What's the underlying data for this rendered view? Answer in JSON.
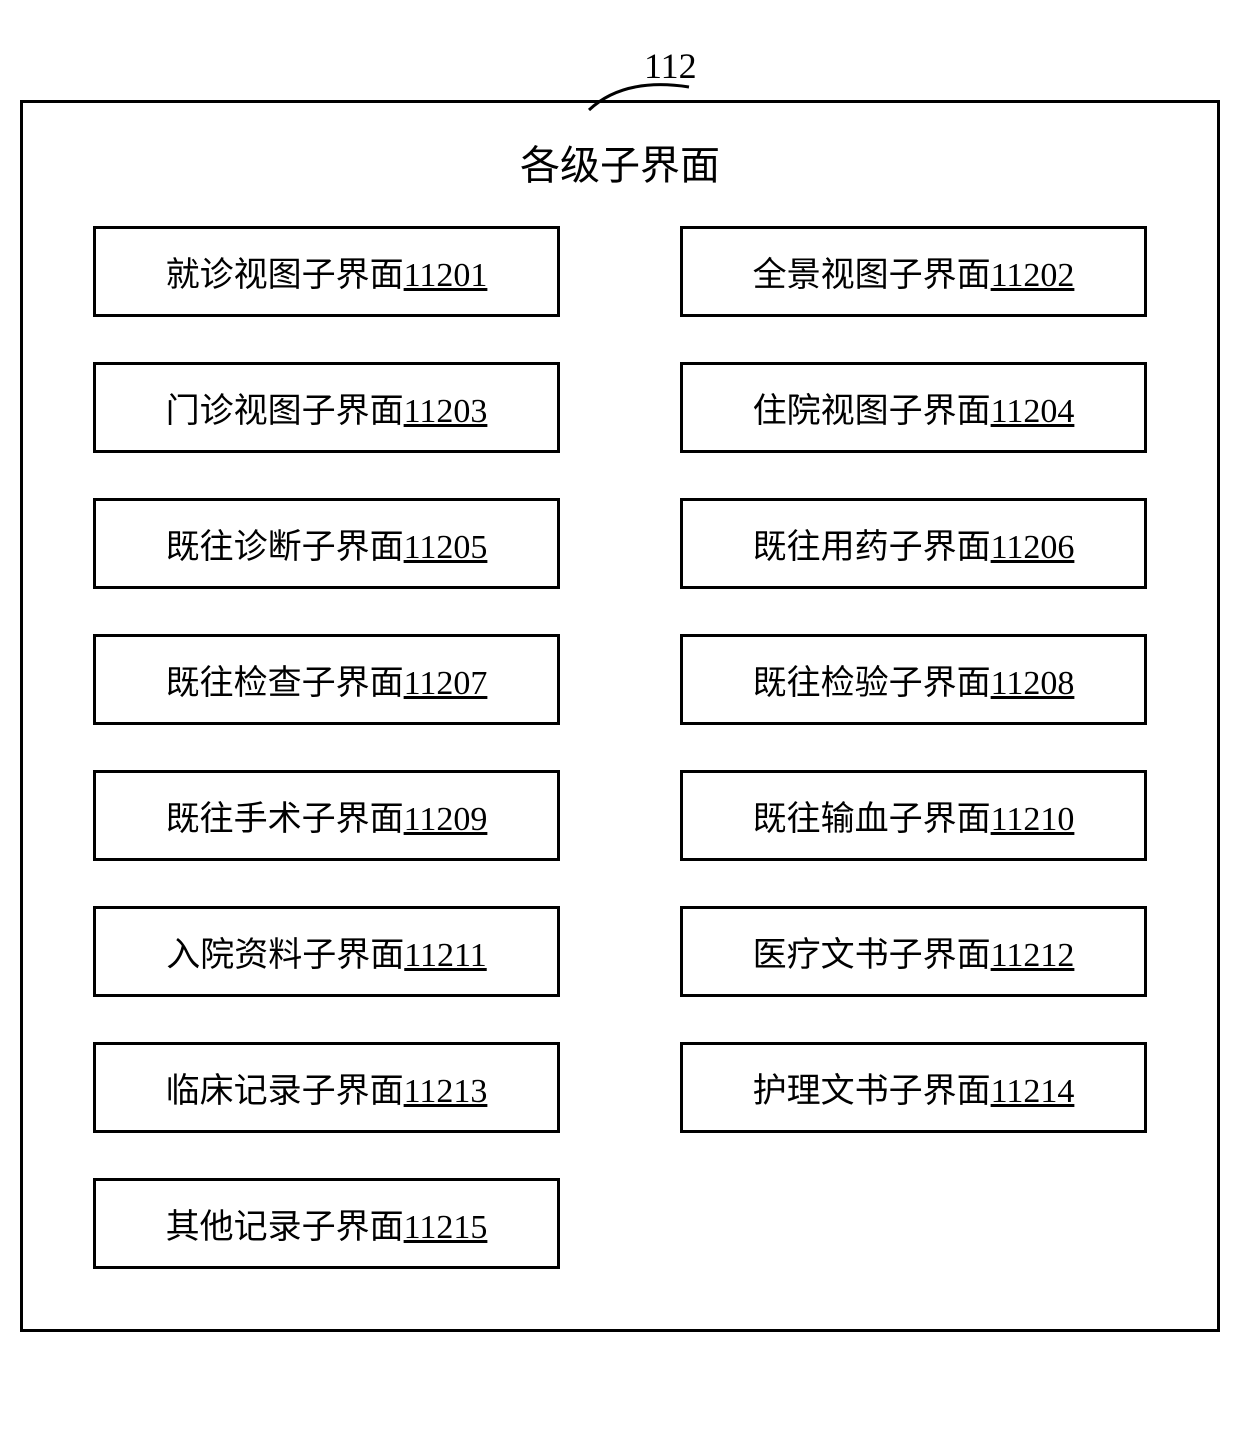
{
  "diagram": {
    "callout_number": "112",
    "title": "各级子界面",
    "border_color": "#000000",
    "background_color": "#ffffff",
    "text_color": "#000000",
    "title_fontsize": 40,
    "item_fontsize": 34,
    "callout_fontsize": 36,
    "columns": 2,
    "items": [
      {
        "label": "就诊视图子界面",
        "code": "11201"
      },
      {
        "label": "全景视图子界面",
        "code": "11202"
      },
      {
        "label": "门诊视图子界面",
        "code": "11203"
      },
      {
        "label": "住院视图子界面",
        "code": "11204"
      },
      {
        "label": "既往诊断子界面",
        "code": "11205"
      },
      {
        "label": "既往用药子界面",
        "code": "11206"
      },
      {
        "label": "既往检查子界面",
        "code": "11207"
      },
      {
        "label": "既往检验子界面",
        "code": "11208"
      },
      {
        "label": "既往手术子界面",
        "code": "11209"
      },
      {
        "label": "既往输血子界面",
        "code": "11210"
      },
      {
        "label": "入院资料子界面",
        "code": "11211"
      },
      {
        "label": "医疗文书子界面",
        "code": "11212"
      },
      {
        "label": "临床记录子界面",
        "code": "11213"
      },
      {
        "label": "护理文书子界面",
        "code": "11214"
      },
      {
        "label": "其他记录子界面",
        "code": "11215"
      }
    ]
  }
}
